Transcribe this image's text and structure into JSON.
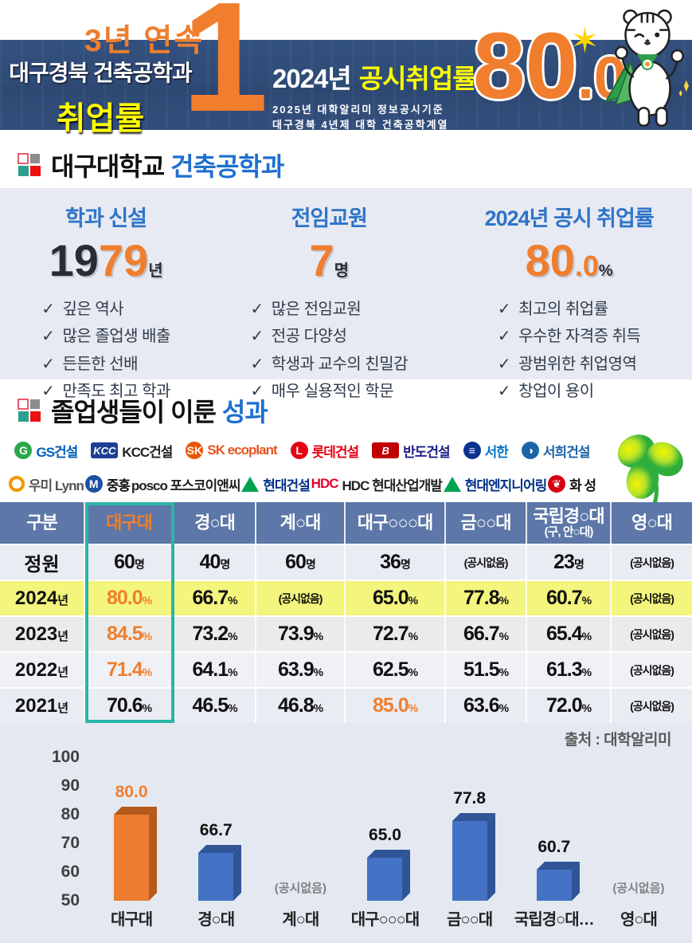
{
  "colors": {
    "accent_orange": "#ED7D31",
    "navy": "#2F4D7D",
    "banner_yellow": "#FFFF00",
    "row_highlight_yellow": "#F3F57C",
    "highlight_box_teal": "#2AB5A5",
    "table_header_bg": "#5C77A8",
    "bar_blue": "#4472C4",
    "bar_blue_dark": "#2F5597",
    "bar_orange": "#ED7D31",
    "bar_orange_dark": "#B55A1B"
  },
  "banner": {
    "streak": "3년 연속",
    "rank": "1",
    "dept": "대구경북 건축공학과",
    "dept_label": "취업률",
    "year": "2024년",
    "metric": "공시취업률",
    "note1": "2025년 대학알리미 정보공시기준",
    "note2": "대구경북 4년제 대학 건축공학계열",
    "rate_main": "80",
    "rate_decimal": ".0",
    "rate_unit": "%",
    "star_icon": "✶"
  },
  "section_univ": {
    "title_main": "대구대학교",
    "title_sub": "건축공학과",
    "stats": [
      {
        "title": "학과 신설",
        "num_dark": "19",
        "num_orange": "79",
        "num_small": "",
        "unit": "년",
        "items": [
          "깊은 역사",
          "많은 졸업생 배출",
          "든든한 선배",
          "만족도 최고 학과"
        ]
      },
      {
        "title": "전임교원",
        "num_dark": "",
        "num_orange": "7",
        "num_small": "",
        "unit": "명",
        "items": [
          "많은 전임교원",
          "전공 다양성",
          "학생과 교수의 친밀감",
          "매우 실용적인 학문"
        ]
      },
      {
        "title": "2024년 공시 취업률",
        "num_dark": "",
        "num_orange": "80",
        "num_small": ".0",
        "unit": "%",
        "items": [
          "최고의 취업률",
          "우수한 자격증 취득",
          "광범위한 취업영역",
          "창업이 용이"
        ]
      }
    ]
  },
  "section_results": {
    "title_main": "졸업생들이 이룬",
    "title_sub": "성과",
    "partners_row1": [
      {
        "label": "GS건설",
        "label_color": "#005EB8",
        "mark": {
          "type": "circle",
          "color": "#2BA84A",
          "text": "G"
        }
      },
      {
        "label": "KCC건설",
        "label_color": "#222222",
        "mark": {
          "type": "box",
          "color": "#1D3F94",
          "text": "KCC"
        }
      },
      {
        "label": "SK ecoplant",
        "label_color": "#E8541E",
        "mark": {
          "type": "circle",
          "color": "#EA5504",
          "text": "SK"
        }
      },
      {
        "label": "롯데건설",
        "label_color": "#E60013",
        "mark": {
          "type": "circle",
          "color": "#E60013",
          "text": "L"
        }
      },
      {
        "label": "반도건설",
        "label_color": "#1D2088",
        "mark": {
          "type": "box",
          "color": "#C00000",
          "text": "B"
        }
      },
      {
        "label": "서한",
        "label_color": "#0075C8",
        "mark": {
          "type": "circle",
          "color": "#0B318F",
          "text": "≡"
        }
      },
      {
        "label": "서희건설",
        "label_color": "#1B64A7",
        "mark": {
          "type": "circle",
          "color": "#1B64A7",
          "text": "◑"
        }
      }
    ],
    "partners_row2": [
      {
        "label": "우미 Lynn",
        "label_color": "#555555",
        "mark": {
          "type": "ring",
          "color": "#F39800",
          "text": ""
        }
      },
      {
        "label": "중흥",
        "label_color": "#111111",
        "mark": {
          "type": "circle",
          "color": "#1C50A1",
          "text": "M"
        }
      },
      {
        "label": "posco 포스코이앤씨",
        "label_color": "#222222",
        "mark": {
          "type": "none",
          "color": "",
          "text": ""
        }
      },
      {
        "label": "현대건설",
        "label_color": "#003087",
        "mark": {
          "type": "triangle",
          "color": "#00A44F",
          "text": ""
        }
      },
      {
        "label": "HDC 현대산업개발",
        "label_color": "#222222",
        "mark": {
          "type": "text",
          "color": "#E6002D",
          "text": "HDC"
        }
      },
      {
        "label": "현대엔지니어링",
        "label_color": "#003087",
        "mark": {
          "type": "triangle",
          "color": "#00A44F",
          "text": ""
        }
      },
      {
        "label": "화 성",
        "label_color": "#111111",
        "mark": {
          "type": "circle",
          "color": "#D7000F",
          "text": "❦"
        }
      }
    ]
  },
  "table": {
    "columns": [
      {
        "line1": "구분",
        "line2": "",
        "accent": false
      },
      {
        "line1": "대구대",
        "line2": "",
        "accent": true
      },
      {
        "line1": "경○대",
        "line2": "",
        "accent": false
      },
      {
        "line1": "계○대",
        "line2": "",
        "accent": false
      },
      {
        "line1": "대구○○○대",
        "line2": "",
        "accent": false
      },
      {
        "line1": "금○○대",
        "line2": "",
        "accent": false
      },
      {
        "line1": "국립경○대",
        "line2": "(구, 안○대)",
        "accent": false
      },
      {
        "line1": "영○대",
        "line2": "",
        "accent": false
      }
    ],
    "rows": [
      {
        "label": "정원",
        "label_unit": "",
        "bg": "#E9ECF3",
        "cells": [
          {
            "v": "60",
            "u": "명"
          },
          {
            "v": "40",
            "u": "명"
          },
          {
            "v": "60",
            "u": "명"
          },
          {
            "v": "36",
            "u": "명"
          },
          {
            "v": "(공시없음)",
            "u": ""
          },
          {
            "v": "23",
            "u": "명"
          },
          {
            "v": "(공시없음)",
            "u": ""
          }
        ]
      },
      {
        "label": "2024",
        "label_unit": "년",
        "bg": "#F3F57C",
        "cells": [
          {
            "v": "80.0",
            "u": "%",
            "accent": true
          },
          {
            "v": "66.7",
            "u": "%"
          },
          {
            "v": "(공시없음)",
            "u": ""
          },
          {
            "v": "65.0",
            "u": "%"
          },
          {
            "v": "77.8",
            "u": "%"
          },
          {
            "v": "60.7",
            "u": "%"
          },
          {
            "v": "(공시없음)",
            "u": ""
          }
        ]
      },
      {
        "label": "2023",
        "label_unit": "년",
        "bg": "#EBEBEB",
        "cells": [
          {
            "v": "84.5",
            "u": "%",
            "accent": true
          },
          {
            "v": "73.2",
            "u": "%"
          },
          {
            "v": "73.9",
            "u": "%"
          },
          {
            "v": "72.7",
            "u": "%"
          },
          {
            "v": "66.7",
            "u": "%"
          },
          {
            "v": "65.4",
            "u": "%"
          },
          {
            "v": "(공시없음)",
            "u": ""
          }
        ]
      },
      {
        "label": "2022",
        "label_unit": "년",
        "bg": "#F0F1F6",
        "cells": [
          {
            "v": "71.4",
            "u": "%",
            "accent": true
          },
          {
            "v": "64.1",
            "u": "%"
          },
          {
            "v": "63.9",
            "u": "%"
          },
          {
            "v": "62.5",
            "u": "%"
          },
          {
            "v": "51.5",
            "u": "%"
          },
          {
            "v": "61.3",
            "u": "%"
          },
          {
            "v": "(공시없음)",
            "u": ""
          }
        ]
      },
      {
        "label": "2021",
        "label_unit": "년",
        "bg": "#E9ECF3",
        "cells": [
          {
            "v": "70.6",
            "u": "%"
          },
          {
            "v": "46.5",
            "u": "%"
          },
          {
            "v": "46.8",
            "u": "%"
          },
          {
            "v": "85.0",
            "u": "%",
            "accent": true
          },
          {
            "v": "63.6",
            "u": "%"
          },
          {
            "v": "72.0",
            "u": "%"
          },
          {
            "v": "(공시없음)",
            "u": ""
          }
        ]
      }
    ]
  },
  "source": "출처 : 대학알리미",
  "chart_data": {
    "type": "bar",
    "title": "",
    "categories": [
      "대구대",
      "경○대",
      "계○대",
      "대구○○○대",
      "금○○대",
      "국립경○대…",
      "영○대"
    ],
    "values": [
      80.0,
      66.7,
      null,
      65.0,
      77.8,
      60.7,
      null
    ],
    "labels": [
      "80.0",
      "66.7",
      "(공시없음)",
      "65.0",
      "77.8",
      "60.7",
      "(공시없음)"
    ],
    "accent_index": 0,
    "xlabel": "",
    "ylabel": "",
    "ylim": [
      50,
      100
    ],
    "yticks": [
      50,
      60,
      70,
      80,
      90,
      100
    ],
    "grid": false,
    "legend": false
  }
}
